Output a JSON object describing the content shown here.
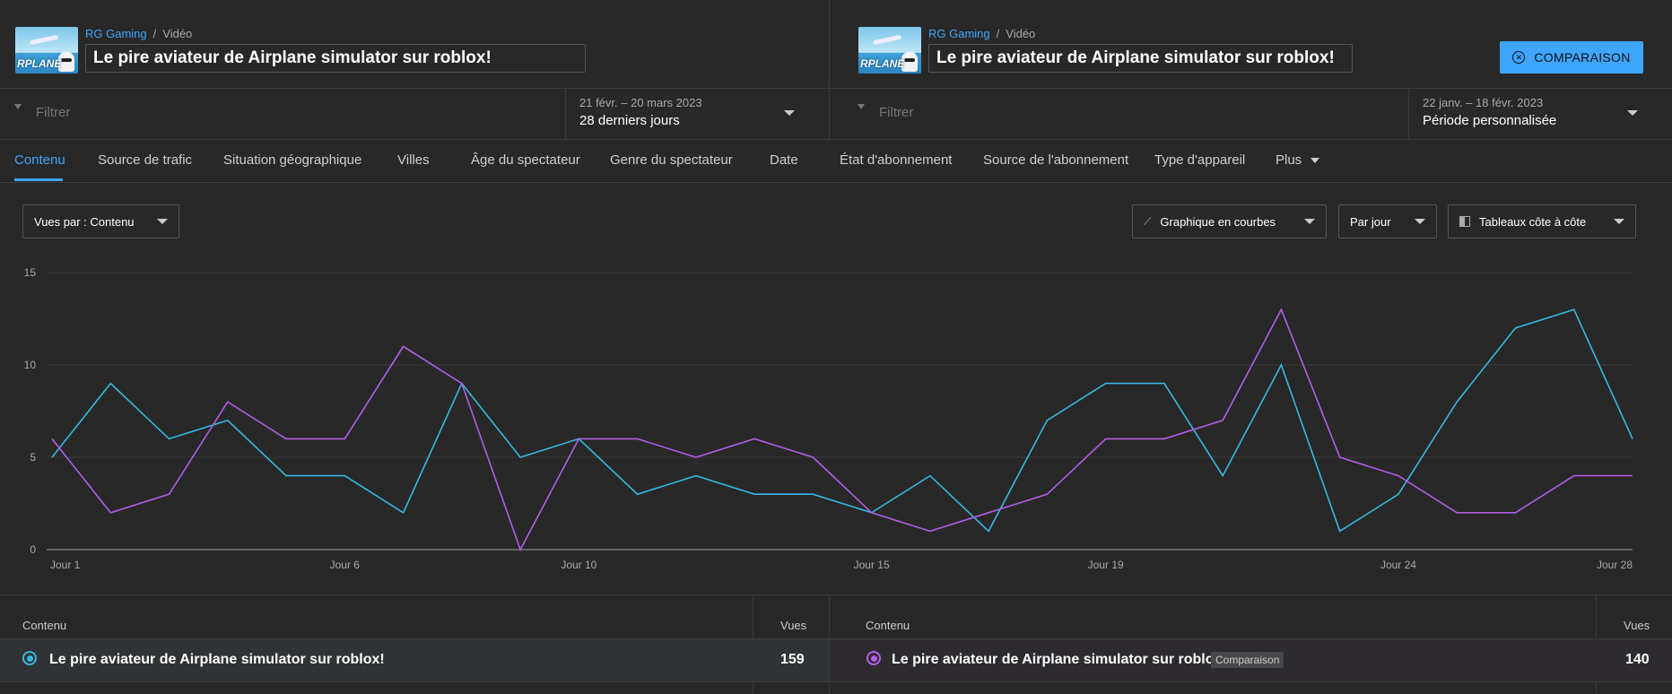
{
  "left": {
    "breadcrumb": {
      "channel": "RG Gaming",
      "separator": "/",
      "section": "Vidéo"
    },
    "video_title": "Le pire aviateur de Airplane simulator sur roblox!",
    "thumbnail_text": "RPLANE",
    "filter_placeholder": "Filtrer",
    "date_range": "21 févr. – 20 mars 2023",
    "date_label": "28 derniers jours"
  },
  "right": {
    "breadcrumb": {
      "channel": "RG Gaming",
      "separator": "/",
      "section": "Vidéo"
    },
    "video_title": "Le pire aviateur de Airplane simulator sur roblox!",
    "thumbnail_text": "RPLANE",
    "filter_placeholder": "Filtrer",
    "date_range": "22 janv. – 18 févr. 2023",
    "date_label": "Période personnalisée"
  },
  "compare_button": {
    "icon": "close-circle-icon",
    "label": "COMPARAISON"
  },
  "tabs": [
    "Contenu",
    "Source de trafic",
    "Situation géographique",
    "Villes",
    "Âge du spectateur",
    "Genre du spectateur",
    "Date",
    "État d'abonnement",
    "Source de l'abonnement",
    "Type d'appareil",
    "Plus"
  ],
  "active_tab": "Contenu",
  "controls": {
    "metric": "Vues par : Contenu",
    "chart_type": {
      "icon": "line-chart-icon",
      "label": "Graphique en courbes"
    },
    "granularity": "Par jour",
    "layout": {
      "icon": "side-by-side-icon",
      "label": "Tableaux côte à côte"
    }
  },
  "chart_data": {
    "type": "line",
    "ylim": [
      0,
      15
    ],
    "yticks": [
      "0",
      "5",
      "10",
      "15"
    ],
    "xtick_labels": [
      {
        "day": 1,
        "label": "Jour 1"
      },
      {
        "day": 6,
        "label": "Jour 6"
      },
      {
        "day": 10,
        "label": "Jour 10"
      },
      {
        "day": 15,
        "label": "Jour 15"
      },
      {
        "day": 19,
        "label": "Jour 19"
      },
      {
        "day": 24,
        "label": "Jour 24"
      },
      {
        "day": 28,
        "label": "Jour 28"
      }
    ],
    "x": [
      1,
      2,
      3,
      4,
      5,
      6,
      7,
      8,
      9,
      10,
      11,
      12,
      13,
      14,
      15,
      16,
      17,
      18,
      19,
      20,
      21,
      22,
      23,
      24,
      25,
      26,
      27,
      28
    ],
    "series": [
      {
        "color": "#36b9e0",
        "values": [
          5,
          9,
          6,
          7,
          4,
          4,
          2,
          9,
          5,
          6,
          3,
          4,
          3,
          3,
          2,
          4,
          1,
          7,
          9,
          9,
          4,
          10,
          1,
          3,
          8,
          12,
          13,
          6
        ]
      },
      {
        "color": "#b25ee8",
        "values": [
          6,
          2,
          3,
          8,
          6,
          6,
          11,
          9,
          0,
          6,
          6,
          5,
          6,
          5,
          2,
          1,
          2,
          3,
          6,
          6,
          7,
          13,
          5,
          4,
          2,
          2,
          4,
          4
        ]
      }
    ]
  },
  "table_left": {
    "col_content": "Contenu",
    "col_views": "Vues",
    "row": {
      "title": "Le pire aviateur de Airplane simulator sur roblox!",
      "views": "159",
      "color": "#36b9e0"
    }
  },
  "table_right": {
    "col_content": "Contenu",
    "col_views": "Vues",
    "row": {
      "title": "Le pire aviateur de Airplane simulator sur roblox!",
      "badge": "Comparaison",
      "views": "140",
      "color": "#b25ee8"
    }
  }
}
